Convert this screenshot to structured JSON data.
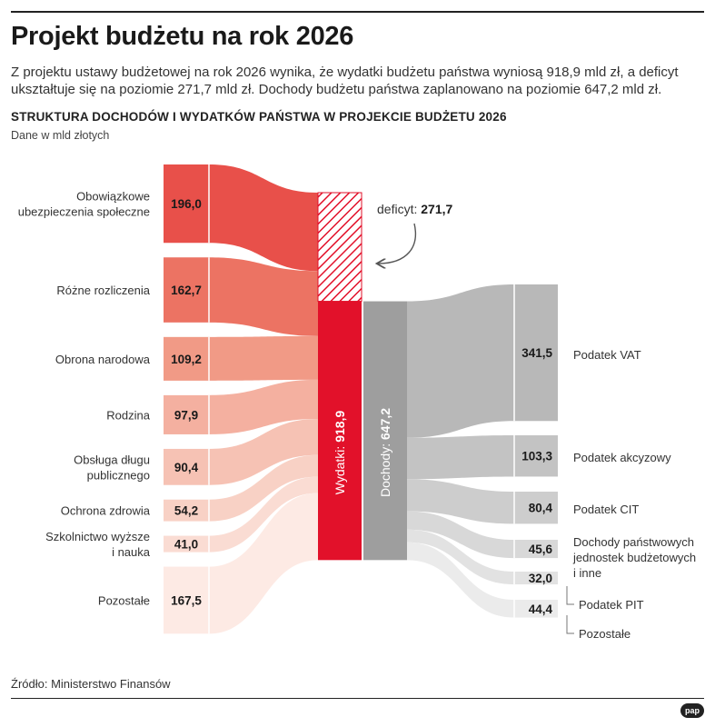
{
  "header": {
    "title": "Projekt budżetu na rok 2026",
    "lead": "Z projektu ustawy budżetowej na rok 2026 wynika, że wydatki budżetu państwa wyniosą 918,9 mld zł, a deficyt ukształtuje się na poziomie 271,7 mld zł. Dochody budżetu państwa zaplanowano na poziomie 647,2 mld zł.",
    "subtitle": "STRUKTURA DOCHODÓW I WYDATKÓW PAŃSTWA W PROJEKCIE BUDŻETU 2026",
    "unit": "Dane w mld złotych"
  },
  "footer": {
    "source": "Źródło: Ministerstwo Finansów",
    "logo": "pap"
  },
  "chart_data": {
    "type": "sankey",
    "unit": "mld zł",
    "expenditures_total": {
      "label": "Wydatki",
      "value": 918.9,
      "value_text": "918,9"
    },
    "revenues_total": {
      "label": "Dochody",
      "value": 647.2,
      "value_text": "647,2"
    },
    "deficit": {
      "label": "deficyt:",
      "value": 271.7,
      "value_text": "271,7"
    },
    "expenditures": [
      {
        "label": "Obowiązkowe ubezpieczenia społeczne",
        "lines": [
          "Obowiązkowe",
          "ubezpieczenia społeczne"
        ],
        "value": 196.0,
        "value_text": "196,0"
      },
      {
        "label": "Różne rozliczenia",
        "lines": [
          "Różne rozliczenia"
        ],
        "value": 162.7,
        "value_text": "162,7"
      },
      {
        "label": "Obrona narodowa",
        "lines": [
          "Obrona narodowa"
        ],
        "value": 109.2,
        "value_text": "109,2"
      },
      {
        "label": "Rodzina",
        "lines": [
          "Rodzina"
        ],
        "value": 97.9,
        "value_text": "97,9"
      },
      {
        "label": "Obsługa długu publicznego",
        "lines": [
          "Obsługa długu",
          "publicznego"
        ],
        "value": 90.4,
        "value_text": "90,4"
      },
      {
        "label": "Ochrona zdrowia",
        "lines": [
          "Ochrona zdrowia"
        ],
        "value": 54.2,
        "value_text": "54,2"
      },
      {
        "label": "Szkolnictwo wyższe i nauka",
        "lines": [
          "Szkolnictwo wyższe",
          "i nauka"
        ],
        "value": 41.0,
        "value_text": "41,0"
      },
      {
        "label": "Pozostałe",
        "lines": [
          "Pozostałe"
        ],
        "value": 167.5,
        "value_text": "167,5"
      }
    ],
    "revenues": [
      {
        "label": "Podatek VAT",
        "lines": [
          "Podatek VAT"
        ],
        "value": 341.5,
        "value_text": "341,5"
      },
      {
        "label": "Podatek akcyzowy",
        "lines": [
          "Podatek akcyzowy"
        ],
        "value": 103.3,
        "value_text": "103,3"
      },
      {
        "label": "Podatek CIT",
        "lines": [
          "Podatek CIT"
        ],
        "value": 80.4,
        "value_text": "80,4"
      },
      {
        "label": "Dochody państwowych jednostek budżetowych i inne",
        "lines": [
          "Dochody państwowych",
          "jednostek budżetowych",
          "i inne"
        ],
        "value": 45.6,
        "value_text": "45,6"
      },
      {
        "label": "Podatek PIT",
        "lines": [
          "Podatek PIT"
        ],
        "value": 32.0,
        "value_text": "32,0"
      },
      {
        "label": "Pozostałe",
        "lines": [
          "Pozostałe"
        ],
        "value": 44.4,
        "value_text": "44,4"
      }
    ],
    "colors": {
      "expenditures": [
        "#e8504a",
        "#ec7363",
        "#f19a86",
        "#f4b0a0",
        "#f6c2b4",
        "#f8d1c5",
        "#fadcd3",
        "#fdeae4"
      ],
      "revenues": [
        "#b8b8b8",
        "#c3c3c3",
        "#cdcdcd",
        "#d8d8d8",
        "#e2e2e2",
        "#ebebeb"
      ],
      "expenditures_bar": "#e2112a",
      "revenues_bar": "#9e9e9e",
      "deficit": "#e2112a"
    }
  }
}
